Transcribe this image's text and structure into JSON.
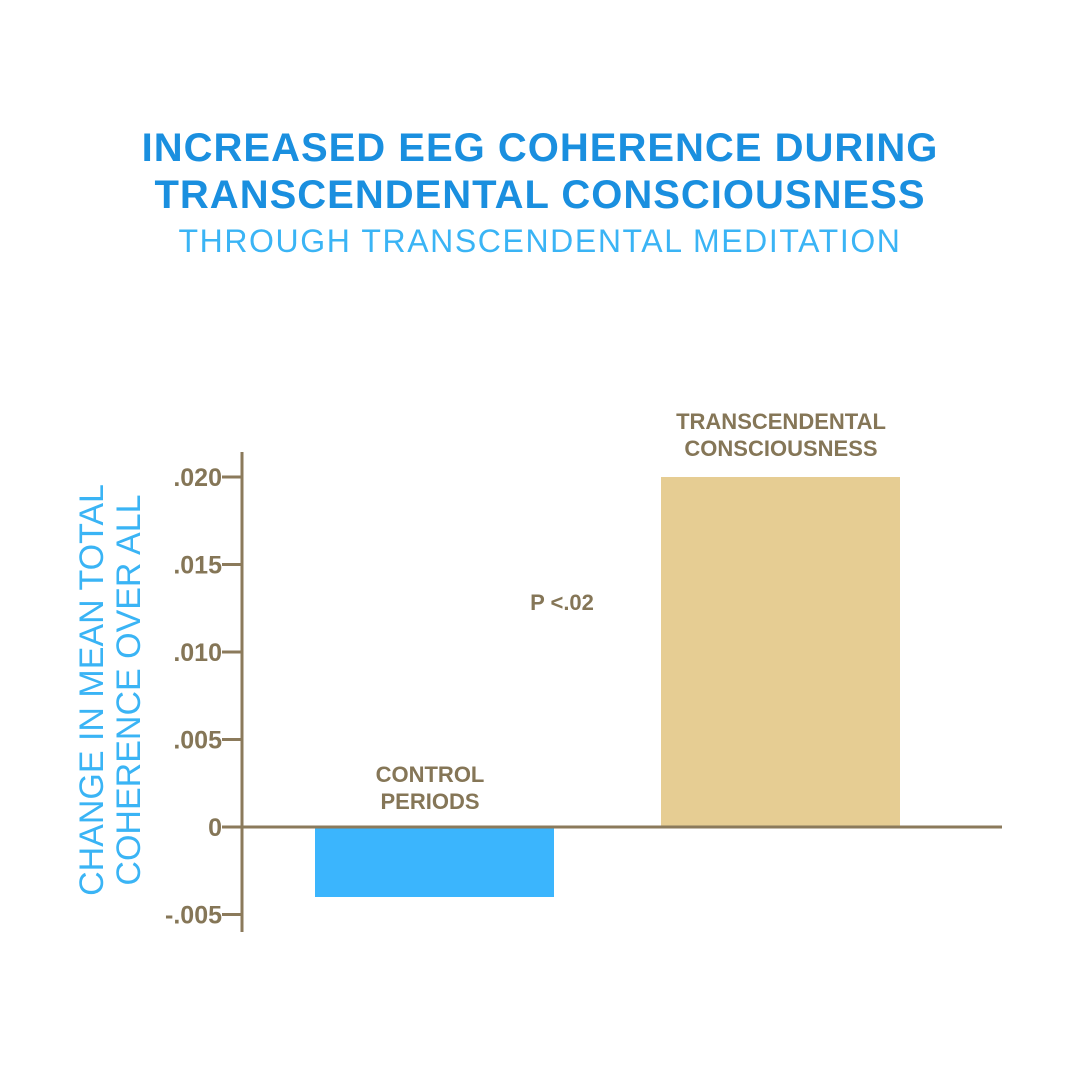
{
  "header": {
    "title_line1": "INCREASED EEG COHERENCE DURING",
    "title_line2": "TRANSCENDENTAL CONSCIOUSNESS",
    "subtitle": "THROUGH TRANSCENDENTAL MEDITATION"
  },
  "colors": {
    "title": "#1a8fdf",
    "subtitle": "#3ab4f5",
    "axis": "#8b7a5b",
    "text": "#857657",
    "ylabel": "#3ab4f5",
    "bar_control": "#3bb5fd",
    "bar_tc": "#e6cd93"
  },
  "chart_data": {
    "type": "bar",
    "title": "INCREASED EEG COHERENCE DURING TRANSCENDENTAL CONSCIOUSNESS",
    "subtitle": "THROUGH TRANSCENDENTAL MEDITATION",
    "ylabel_lines": [
      "CHANGE IN MEAN TOTAL",
      "COHERENCE OVER ALL"
    ],
    "xlabel": "",
    "categories": [
      [
        "CONTROL",
        "PERIODS"
      ],
      [
        "TRANSCENDENTAL",
        "CONSCIOUSNESS"
      ]
    ],
    "values": [
      -0.004,
      0.02
    ],
    "ylim": [
      -0.005,
      0.021
    ],
    "yticks": [
      0.02,
      0.015,
      0.01,
      0.005,
      0,
      -0.005
    ],
    "ytick_labels": [
      ".020",
      ".015",
      ".010",
      ".005",
      "0",
      "-.005"
    ],
    "annotation": "P <.02",
    "grid": false,
    "legend": "none"
  }
}
